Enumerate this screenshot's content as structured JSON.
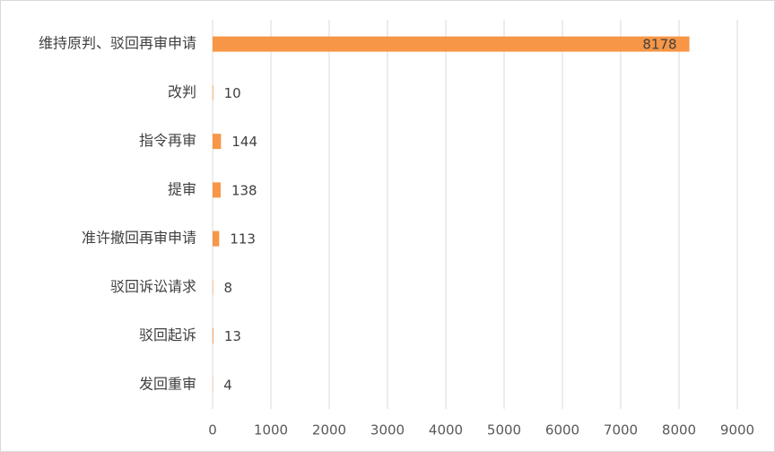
{
  "chart_data": {
    "type": "hbar",
    "categories": [
      "维持原判、驳回再审申请",
      "改判",
      "指令再审",
      "提审",
      "准许撤回再审申请",
      "驳回诉讼请求",
      "驳回起诉",
      "发回重审"
    ],
    "values": [
      8178,
      10,
      144,
      138,
      113,
      8,
      13,
      4
    ],
    "color": "#f79646",
    "xlim": [
      0,
      9000
    ],
    "xticks": [
      0,
      1000,
      2000,
      3000,
      4000,
      5000,
      6000,
      7000,
      8000,
      9000
    ],
    "grid": true
  }
}
